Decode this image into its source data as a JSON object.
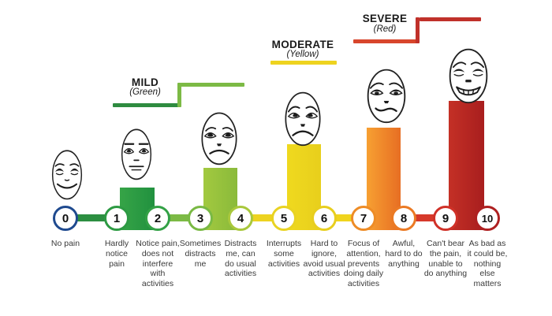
{
  "zones": {
    "mild": {
      "label": "MILD",
      "sublabel": "(Green)",
      "line_color_low": "#2e8b40",
      "line_color_high": "#7cba45"
    },
    "moderate": {
      "label": "MODERATE",
      "sublabel": "(Yellow)",
      "line_color": "#eed31f"
    },
    "severe": {
      "label": "SEVERE",
      "sublabel": "(Red)",
      "line_color_low": "#d8462c",
      "line_color_high": "#c0312a"
    }
  },
  "scale": {
    "points": [
      {
        "value": "0",
        "ring_color": "#1f4a8f",
        "description": "No pain"
      },
      {
        "value": "1",
        "ring_color": "#2d9a43",
        "description": "Hardly\nnotice\npain"
      },
      {
        "value": "2",
        "ring_color": "#33a146",
        "description": "Notice pain,\ndoes not\ninterfere\nwith\nactivities"
      },
      {
        "value": "3",
        "ring_color": "#79b944",
        "description": "Sometimes\ndistracts\nme"
      },
      {
        "value": "4",
        "ring_color": "#a9c83c",
        "description": "Distracts\nme, can\ndo usual\nactivities"
      },
      {
        "value": "5",
        "ring_color": "#e9d322",
        "description": "Interrupts\nsome\nactivities"
      },
      {
        "value": "6",
        "ring_color": "#e8ce1e",
        "description": "Hard to\nignore,\navoid usual\nactivities"
      },
      {
        "value": "7",
        "ring_color": "#ee8c26",
        "description": "Focus of\nattention,\nprevents\ndoing daily\nactivities"
      },
      {
        "value": "8",
        "ring_color": "#eb7a24",
        "description": "Awful,\nhard to do\nanything"
      },
      {
        "value": "9",
        "ring_color": "#d03128",
        "description": "Can't bear\nthe pain,\nunable to\ndo anything"
      },
      {
        "value": "10",
        "ring_color": "#ae2021",
        "description": "As bad as\nit could be,\nnothing\nelse\nmatters"
      }
    ],
    "connectors": [
      {
        "between": "0-1",
        "color": "#2c8f41"
      },
      {
        "between": "2-3",
        "color": "#7cba45"
      },
      {
        "between": "4-5",
        "color": "#edd320"
      },
      {
        "between": "6-7",
        "color": "#f0d41d"
      },
      {
        "between": "8-9",
        "color": "#d6392a"
      }
    ],
    "bars": [
      {
        "span": "1-2",
        "color_from": "#36a447",
        "color_to": "#21913f"
      },
      {
        "span": "3-4",
        "color_from": "#a2c93f",
        "color_to": "#8aba3b"
      },
      {
        "span": "5-6",
        "color_from": "#efd91f",
        "color_to": "#e8cf1c"
      },
      {
        "span": "7-8",
        "color_from": "#f7a032",
        "color_to": "#e76e23"
      },
      {
        "span": "9-10",
        "color_from": "#c43026",
        "color_to": "#a81e1e"
      }
    ],
    "faces": [
      {
        "expression": "smiling",
        "position": "0"
      },
      {
        "expression": "neutral",
        "position": "1-2"
      },
      {
        "expression": "concerned",
        "position": "3-4"
      },
      {
        "expression": "sad",
        "position": "5-6"
      },
      {
        "expression": "distressed",
        "position": "7-8"
      },
      {
        "expression": "grimacing",
        "position": "9-10"
      }
    ]
  }
}
